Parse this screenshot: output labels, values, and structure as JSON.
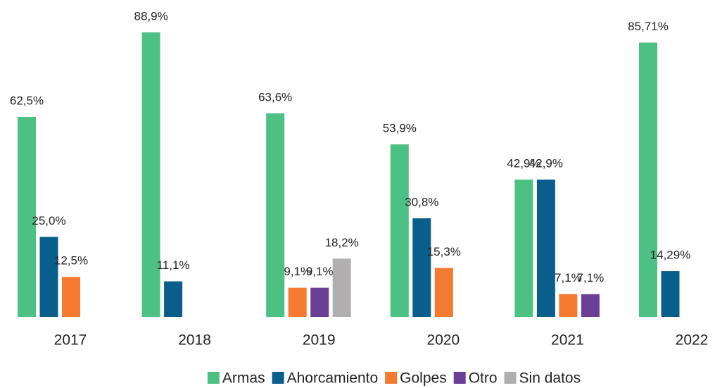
{
  "chart_data": {
    "type": "bar",
    "categories": [
      "2017",
      "2018",
      "2019",
      "2020",
      "2021",
      "2022"
    ],
    "series": [
      {
        "name": "Armas",
        "color": "#4dc183",
        "values": [
          62.5,
          88.9,
          63.6,
          53.9,
          42.9,
          85.71
        ],
        "value_labels": [
          "62,5%",
          "88,9%",
          "63,6%",
          "53,9%",
          "42,9%",
          "85,71%"
        ]
      },
      {
        "name": "Ahorcamiento",
        "color": "#0a5e8c",
        "values": [
          25.0,
          11.1,
          null,
          30.8,
          42.9,
          14.29
        ],
        "value_labels": [
          "25,0%",
          "11,1%",
          null,
          "30,8%",
          "42,9%",
          "14,29%"
        ]
      },
      {
        "name": "Golpes",
        "color": "#f47a30",
        "values": [
          12.5,
          null,
          9.1,
          15.3,
          7.1,
          null
        ],
        "value_labels": [
          "12,5%",
          null,
          "9,1%",
          "15,3%",
          "7,1%",
          null
        ]
      },
      {
        "name": "Otro",
        "color": "#6c3f96",
        "values": [
          null,
          null,
          9.1,
          null,
          7.1,
          null
        ],
        "value_labels": [
          null,
          null,
          "9,1%",
          null,
          "7,1%",
          null
        ]
      },
      {
        "name": "Sin datos",
        "color": "#b0aeae",
        "values": [
          null,
          null,
          18.2,
          null,
          null,
          null
        ],
        "value_labels": [
          null,
          null,
          "18,2%",
          null,
          null,
          null
        ]
      }
    ],
    "legend": "bottom"
  }
}
